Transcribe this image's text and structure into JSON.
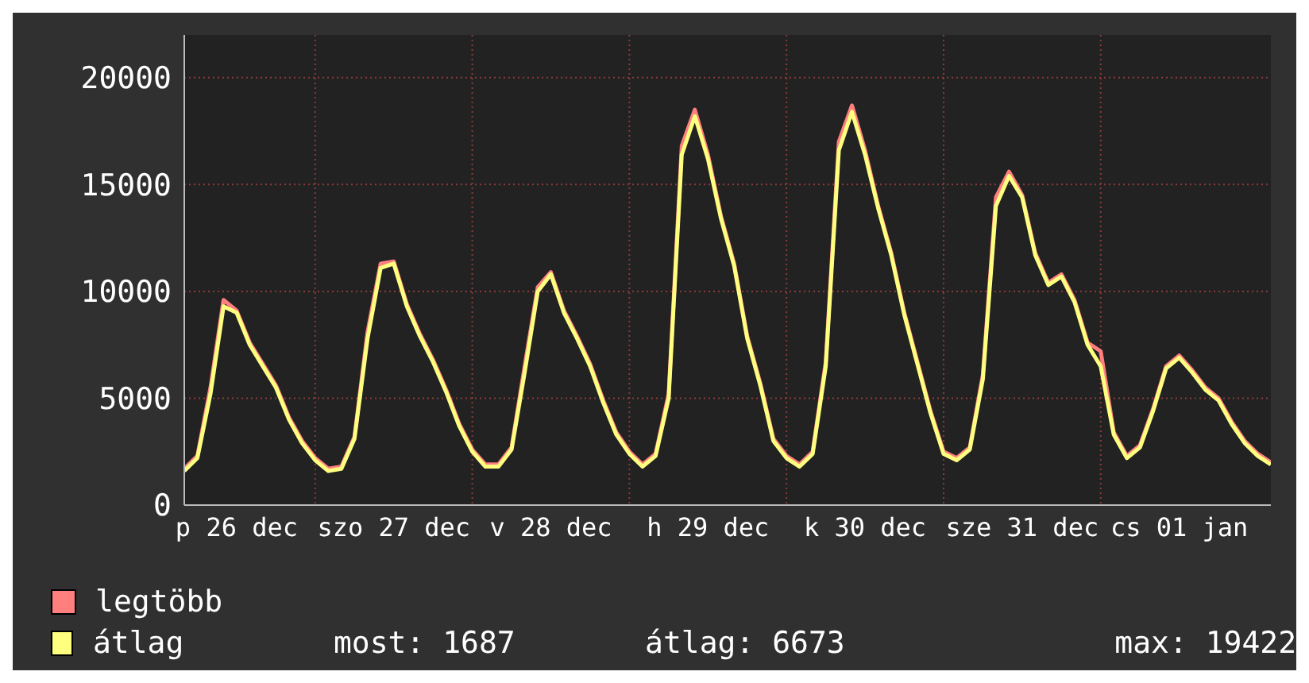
{
  "chart_data": {
    "type": "line",
    "categories": [
      null,
      null,
      null,
      null,
      "p 26 dec",
      null,
      null,
      null,
      null,
      null,
      null,
      null,
      null,
      null,
      null,
      null,
      "szo 27 dec",
      null,
      null,
      null,
      null,
      null,
      null,
      null,
      null,
      null,
      null,
      null,
      "v 28 dec",
      null,
      null,
      null,
      null,
      null,
      null,
      null,
      null,
      null,
      null,
      null,
      "h 29 dec",
      null,
      null,
      null,
      null,
      null,
      null,
      null,
      null,
      null,
      null,
      null,
      "k 30 dec",
      null,
      null,
      null,
      null,
      null,
      null,
      null,
      null,
      null,
      null,
      null,
      "sze 31 dec",
      null,
      null,
      null,
      null,
      null,
      null,
      null,
      null,
      null,
      null,
      null,
      "cs 01 jan",
      null,
      null,
      null,
      null,
      null,
      null,
      null
    ],
    "series": [
      {
        "name": "legtöbb",
        "color": "#ff7f7f",
        "values": [
          1700,
          2300,
          5500,
          9600,
          9100,
          7600,
          6600,
          5600,
          4100,
          3000,
          2200,
          1700,
          1800,
          3200,
          8100,
          11300,
          11400,
          9400,
          8000,
          6800,
          5400,
          3800,
          2600,
          1900,
          1900,
          2700,
          6500,
          10200,
          10900,
          9100,
          7900,
          6600,
          4900,
          3400,
          2500,
          1900,
          2400,
          5200,
          16800,
          18500,
          16400,
          13500,
          11300,
          7900,
          5700,
          3100,
          2300,
          1900,
          2500,
          6700,
          17000,
          18700,
          16600,
          14000,
          11800,
          9000,
          6700,
          4400,
          2500,
          2200,
          2700,
          6100,
          14400,
          15600,
          14500,
          11800,
          10400,
          10800,
          9600,
          7600,
          7200,
          3400,
          2300,
          2800,
          4500,
          6500,
          7000,
          6300,
          5500,
          5000,
          3900,
          3000,
          2400,
          2000
        ]
      },
      {
        "name": "átlag",
        "color": "#ffff7f",
        "values": [
          1600,
          2200,
          5200,
          9300,
          9000,
          7500,
          6500,
          5500,
          4000,
          2900,
          2100,
          1600,
          1700,
          3100,
          7800,
          11100,
          11300,
          9300,
          7900,
          6700,
          5300,
          3700,
          2500,
          1800,
          1800,
          2600,
          6200,
          10000,
          10800,
          9000,
          7800,
          6500,
          4800,
          3300,
          2400,
          1800,
          2300,
          5000,
          16400,
          18200,
          16200,
          13400,
          11200,
          7800,
          5600,
          3000,
          2200,
          1800,
          2400,
          6500,
          16600,
          18400,
          16400,
          13900,
          11700,
          8900,
          6600,
          4300,
          2400,
          2100,
          2600,
          5900,
          14000,
          15400,
          14400,
          11700,
          10300,
          10700,
          9500,
          7500,
          6500,
          3300,
          2200,
          2700,
          4400,
          6400,
          6900,
          6200,
          5400,
          4900,
          3800,
          2900,
          2300,
          1900
        ]
      }
    ],
    "ylim": [
      0,
      22000
    ],
    "yticks": [
      0,
      5000,
      10000,
      15000,
      20000
    ],
    "grid": true,
    "legend": "bottom",
    "marker": "none",
    "line_style": "solid",
    "annotations": [
      "most: 1687",
      "átlag: 6673",
      "max: 19422"
    ]
  }
}
